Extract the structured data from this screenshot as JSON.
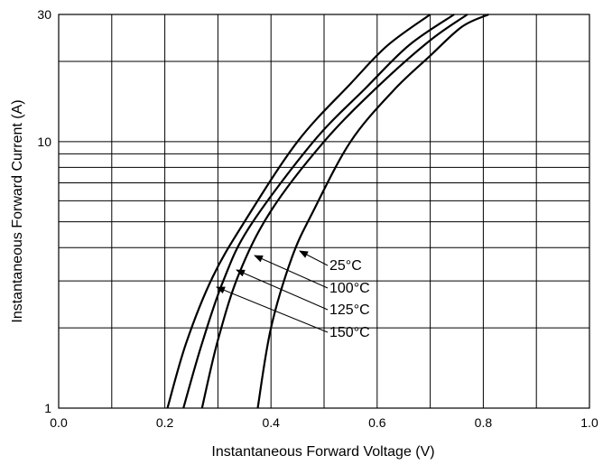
{
  "chart_data": {
    "type": "line",
    "xlabel": "Instantaneous Forward Voltage (V)",
    "ylabel": "Instantaneous Forward Current (A)",
    "xlim": [
      0.0,
      1.0
    ],
    "ylim": [
      1,
      30
    ],
    "yscale": "log",
    "grid": true,
    "x_ticks": [
      "0.0",
      "0.2",
      "0.4",
      "0.6",
      "0.8",
      "1.0"
    ],
    "y_ticks": [
      "1",
      "10",
      "30"
    ],
    "series": [
      {
        "name": "25°C",
        "points": [
          [
            0.375,
            1
          ],
          [
            0.4,
            2
          ],
          [
            0.44,
            3.7
          ],
          [
            0.48,
            5.5
          ],
          [
            0.55,
            10
          ],
          [
            0.63,
            15.5
          ],
          [
            0.7,
            21
          ],
          [
            0.76,
            27
          ],
          [
            0.81,
            30
          ]
        ]
      },
      {
        "name": "100°C",
        "points": [
          [
            0.27,
            1
          ],
          [
            0.3,
            1.8
          ],
          [
            0.34,
            3.2
          ],
          [
            0.4,
            5.5
          ],
          [
            0.5,
            10
          ],
          [
            0.6,
            16
          ],
          [
            0.7,
            24
          ],
          [
            0.77,
            30
          ]
        ]
      },
      {
        "name": "125°C",
        "points": [
          [
            0.235,
            1
          ],
          [
            0.27,
            1.75
          ],
          [
            0.31,
            3.0
          ],
          [
            0.36,
            4.8
          ],
          [
            0.48,
            10
          ],
          [
            0.58,
            16
          ],
          [
            0.66,
            23
          ],
          [
            0.745,
            30
          ]
        ]
      },
      {
        "name": "150°C",
        "points": [
          [
            0.205,
            1
          ],
          [
            0.24,
            1.75
          ],
          [
            0.29,
            3.1
          ],
          [
            0.35,
            5.0
          ],
          [
            0.45,
            10
          ],
          [
            0.55,
            16.5
          ],
          [
            0.62,
            23
          ],
          [
            0.7,
            30
          ]
        ]
      }
    ]
  }
}
